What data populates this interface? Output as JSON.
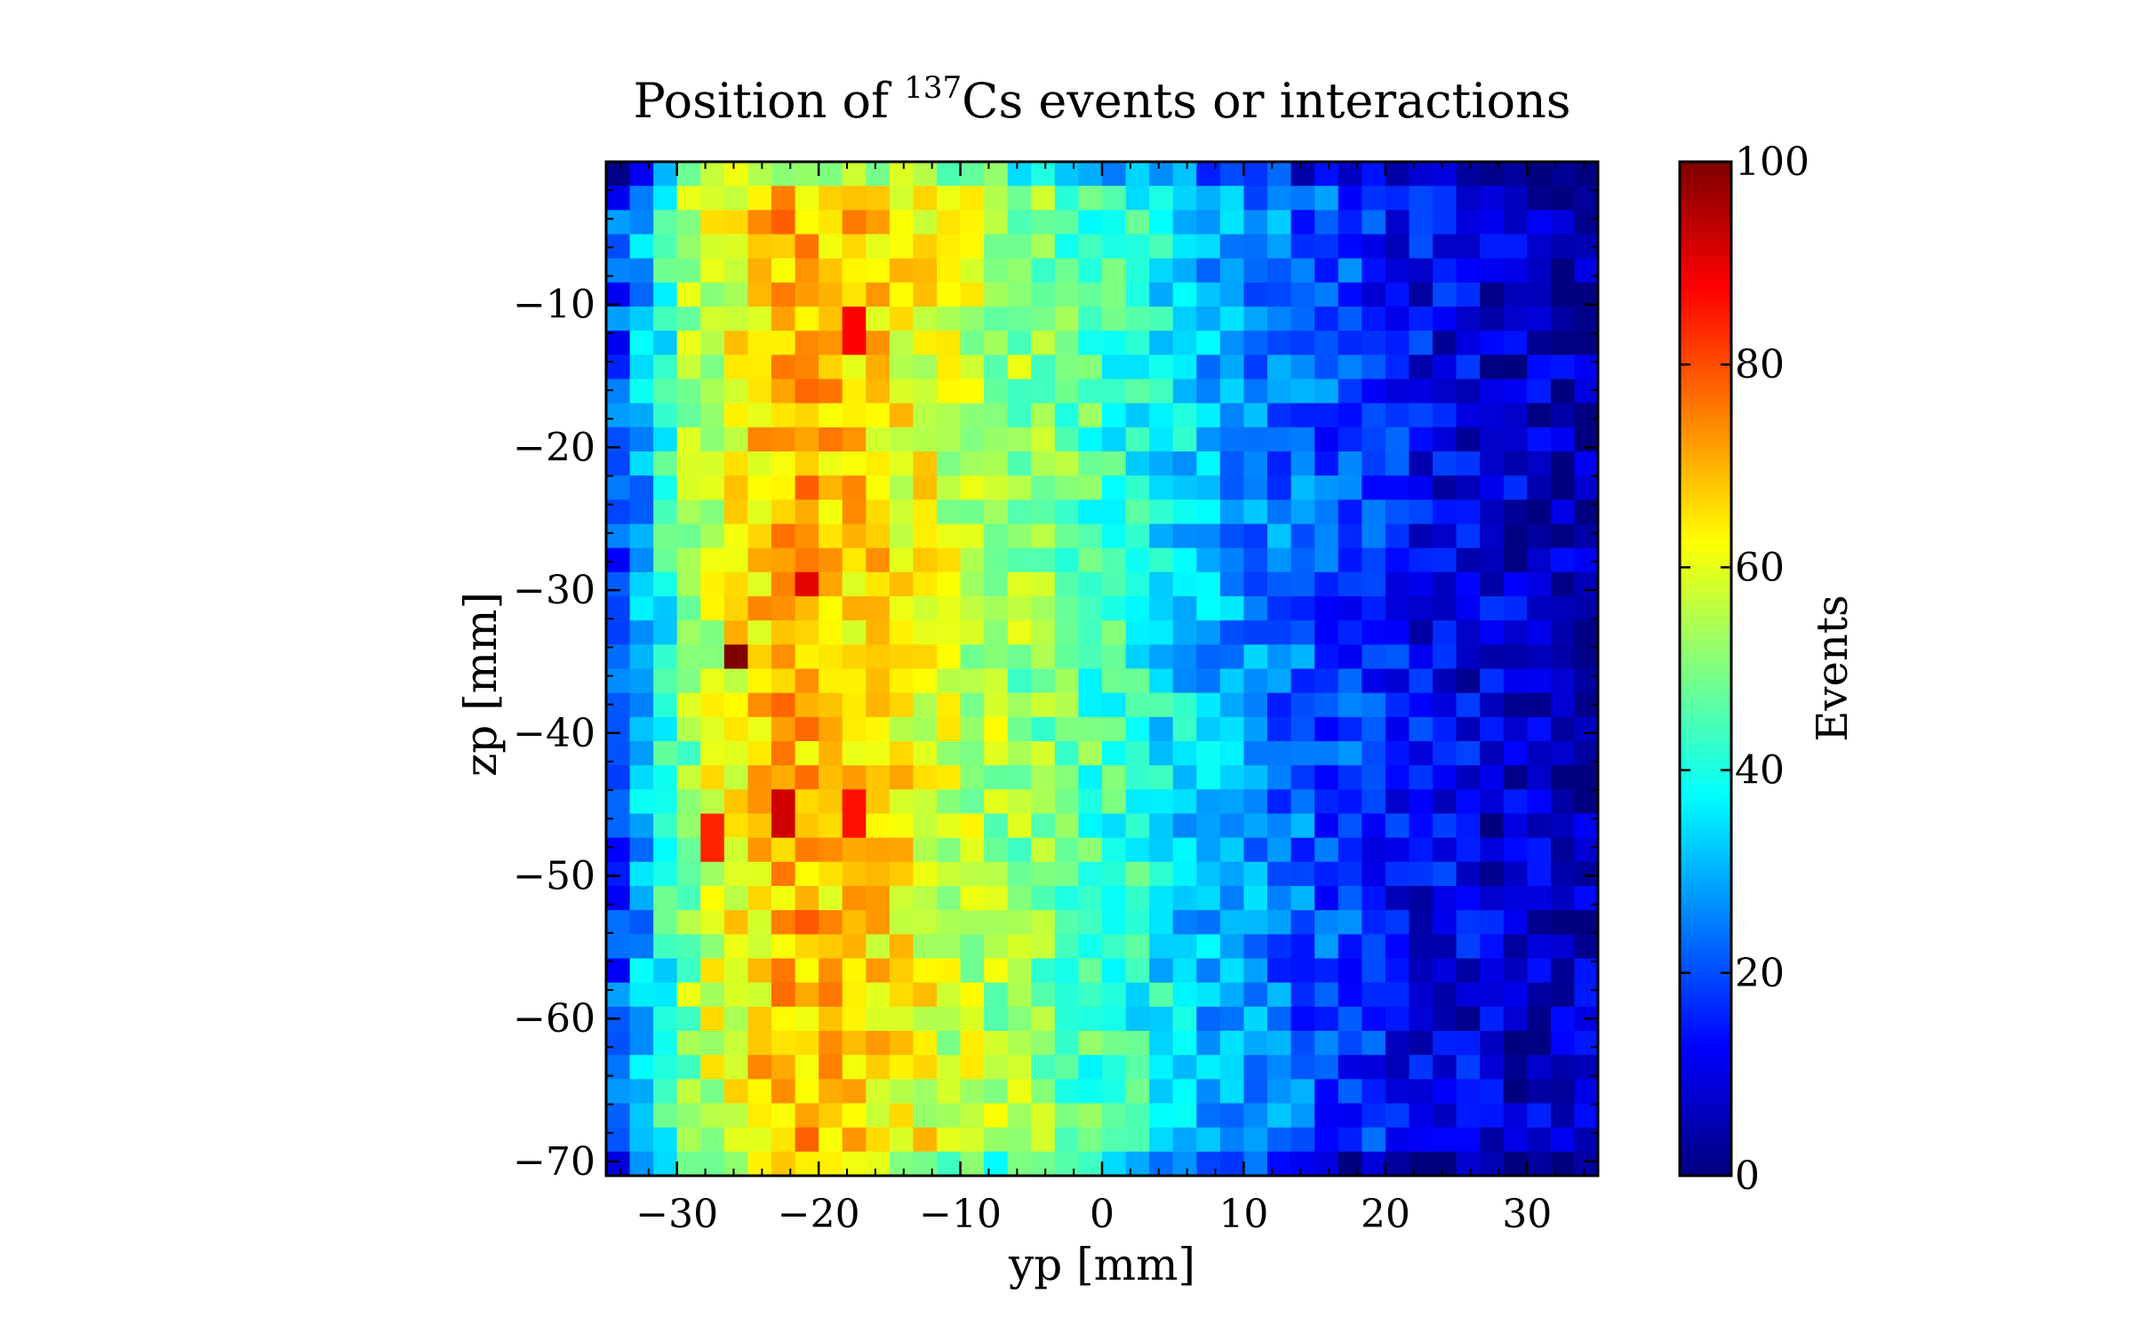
{
  "chart_data": {
    "type": "heatmap",
    "title_main": "Position of ",
    "title_sup": "137",
    "title_rest": "Cs events or interactions",
    "xlabel": "yp [mm]",
    "ylabel": "zp [mm]",
    "colorbar_label": "Events",
    "colormap": "jet",
    "xlim": [
      -35,
      35
    ],
    "ylim": [
      -71,
      0
    ],
    "clim": [
      0,
      100
    ],
    "nx": 42,
    "ny": 42,
    "x_ticks": [
      -30,
      -20,
      -10,
      0,
      10,
      20,
      30
    ],
    "x_tick_labels": [
      "−30",
      "−20",
      "−10",
      "0",
      "10",
      "20",
      "30"
    ],
    "y_ticks": [
      -10,
      -20,
      -30,
      -40,
      -50,
      -60,
      -70
    ],
    "y_tick_labels": [
      "−10",
      "−20",
      "−30",
      "−40",
      "−50",
      "−60",
      "−70"
    ],
    "colorbar_ticks": [
      0,
      20,
      40,
      60,
      80,
      100
    ],
    "colorbar_tick_labels": [
      "0",
      "20",
      "40",
      "60",
      "80",
      "100"
    ],
    "column_profile_events": [
      20,
      30,
      40,
      52,
      58,
      62,
      66,
      70,
      70,
      68,
      67,
      65,
      63,
      61,
      58,
      56,
      54,
      52,
      50,
      48,
      45,
      42,
      40,
      37,
      34,
      31,
      28,
      26,
      24,
      22,
      20,
      18,
      16,
      14,
      12,
      11,
      10,
      9,
      8,
      7,
      6,
      6
    ],
    "hotspots": [
      {
        "x": -26,
        "y": -34.5,
        "value": 100
      },
      {
        "x": -21,
        "y": -29,
        "value": 90
      },
      {
        "x": -22,
        "y": -45.5,
        "value": 92
      },
      {
        "x": -17,
        "y": -12,
        "value": 88
      },
      {
        "x": -17,
        "y": -45.5,
        "value": 86
      },
      {
        "x": -28,
        "y": -47.5,
        "value": 84
      }
    ]
  }
}
